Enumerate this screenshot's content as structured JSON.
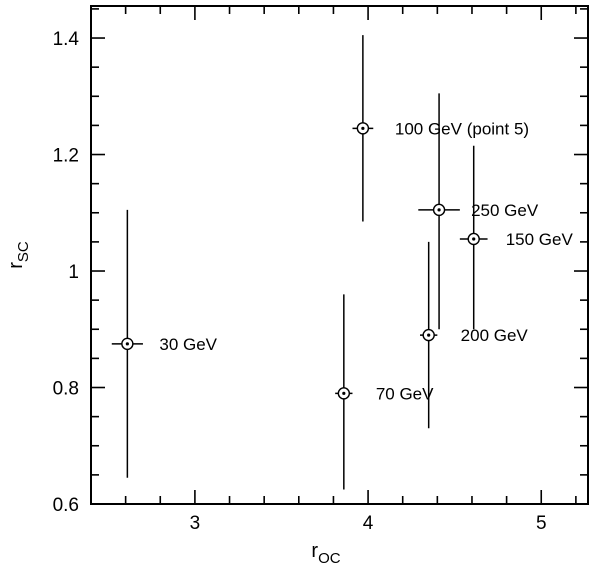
{
  "chart_data": {
    "type": "scatter",
    "xlabel": {
      "main": "r",
      "sub": "OC"
    },
    "ylabel": {
      "main": "r",
      "sub": "SC"
    },
    "xlim": [
      2.4,
      5.27
    ],
    "ylim": [
      0.6,
      1.455
    ],
    "xticks": [
      3,
      4,
      5
    ],
    "xtick_labels": [
      "3",
      "4",
      "5"
    ],
    "yticks": [
      0.6,
      0.8,
      1.0,
      1.2,
      1.4
    ],
    "ytick_labels": [
      "0.6",
      "0.8",
      "1",
      "1.2",
      "1.4"
    ],
    "x_minor_step": 0.2,
    "y_minor_step": 0.05,
    "grid": false,
    "points": [
      {
        "label": "30 GeV",
        "x": 2.61,
        "y": 0.875,
        "xerr": 0.09,
        "ylow": 0.645,
        "yhigh": 1.105
      },
      {
        "label": "70 GeV",
        "x": 3.86,
        "y": 0.79,
        "xerr": 0.05,
        "ylow": 0.625,
        "yhigh": 0.96
      },
      {
        "label": "100 GeV (point 5)",
        "x": 3.97,
        "y": 1.245,
        "xerr": 0.06,
        "ylow": 1.085,
        "yhigh": 1.405
      },
      {
        "label": "200 GeV",
        "x": 4.35,
        "y": 0.89,
        "xerr": 0.05,
        "ylow": 0.73,
        "yhigh": 1.05
      },
      {
        "label": "250 GeV",
        "x": 4.41,
        "y": 1.105,
        "xerr": 0.12,
        "ylow": 0.9,
        "yhigh": 1.305
      },
      {
        "label": "150 GeV",
        "x": 4.61,
        "y": 1.055,
        "xerr": 0.08,
        "ylow": 0.9,
        "yhigh": 1.215
      }
    ]
  }
}
